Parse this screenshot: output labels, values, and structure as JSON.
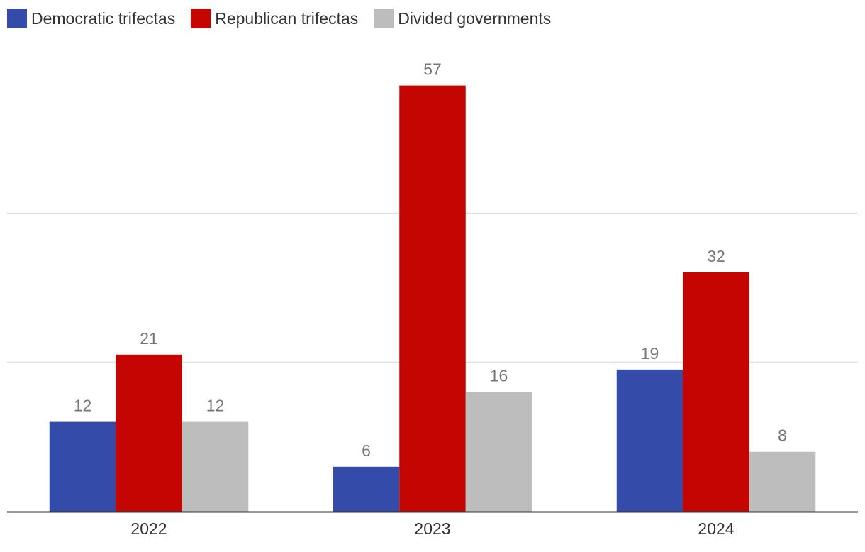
{
  "chart_data": {
    "type": "bar",
    "categories": [
      "2022",
      "2023",
      "2024"
    ],
    "series": [
      {
        "name": "Democratic trifectas",
        "color": "#344ba9",
        "values": [
          12,
          6,
          19
        ]
      },
      {
        "name": "Republican trifectas",
        "color": "#c40501",
        "values": [
          21,
          57,
          32
        ]
      },
      {
        "name": "Divided governments",
        "color": "#bdbdbd",
        "values": [
          12,
          16,
          8
        ]
      }
    ],
    "title": "",
    "xlabel": "",
    "ylabel": "",
    "ylim": [
      0,
      60
    ],
    "grid": true,
    "legend": "top-left",
    "data_labels": true
  }
}
